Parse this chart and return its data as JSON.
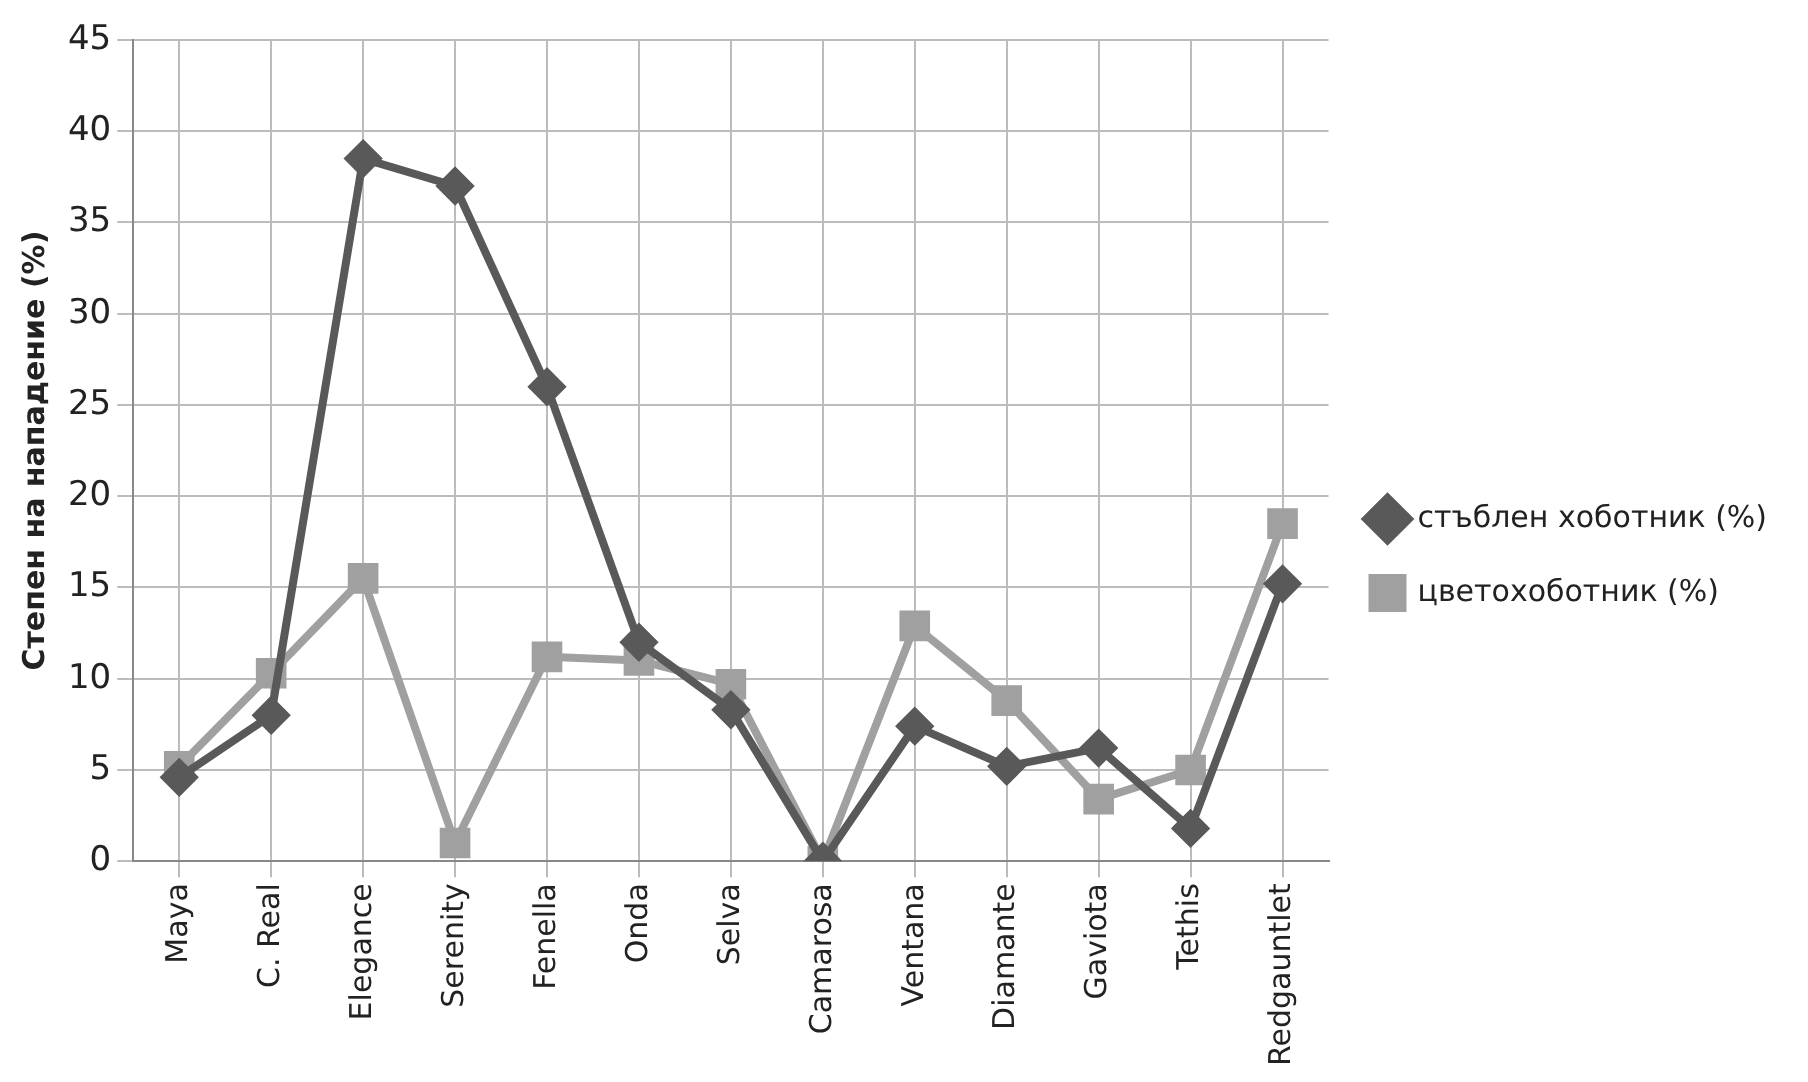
{
  "chart_data": {
    "type": "line",
    "ylabel": "Степен на нападение (%)",
    "categories": [
      "Maya",
      "C. Real",
      "Elegance",
      "Serenity",
      "Fenella",
      "Onda",
      "Selva",
      "Camarosa",
      "Ventana",
      "Diamante",
      "Gaviota",
      "Tethis",
      "Redgauntlet"
    ],
    "series": [
      {
        "name": "стъблен хоботник (%)",
        "color": "#595959",
        "marker": "diamond",
        "values": [
          4.6,
          8,
          38.5,
          37,
          26,
          12,
          8.3,
          0,
          7.4,
          5.2,
          6.2,
          1.8,
          15.2
        ]
      },
      {
        "name": "цветохоботник (%)",
        "color": "#a0a0a0",
        "marker": "square",
        "values": [
          5.2,
          10.3,
          15.5,
          1,
          11.2,
          11,
          9.7,
          0,
          12.9,
          8.8,
          3.4,
          5,
          18.5
        ]
      }
    ],
    "ylim": [
      0,
      45
    ],
    "yticks": [
      0,
      5,
      10,
      15,
      20,
      25,
      30,
      35,
      40,
      45
    ],
    "grid": true,
    "legend": "right",
    "line_style": "solid"
  }
}
